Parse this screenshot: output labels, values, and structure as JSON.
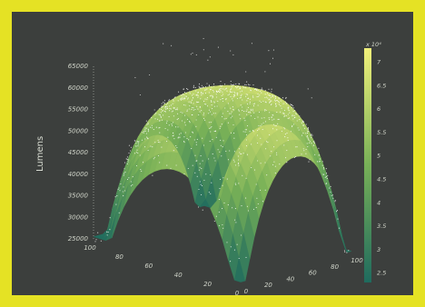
{
  "chart_data": {
    "type": "surface",
    "title": "",
    "zlabel": "Lumens",
    "x_ticks": [
      "100",
      "80",
      "60",
      "40",
      "20",
      "0"
    ],
    "y_ticks": [
      "0",
      "20",
      "40",
      "60",
      "80",
      "100"
    ],
    "z_ticks": [
      "25000",
      "30000",
      "35000",
      "40000",
      "45000",
      "50000",
      "55000",
      "60000",
      "65000"
    ],
    "x_range": [
      0,
      100
    ],
    "y_range": [
      0,
      100
    ],
    "z_range": [
      25000,
      65000
    ],
    "colorbar": {
      "ticks": [
        "2.5",
        "3",
        "3.5",
        "4",
        "4.5",
        "5",
        "5.5",
        "6",
        "6.5",
        "7"
      ],
      "top_label": "x 10⁴",
      "range": [
        2.3,
        7.3
      ]
    },
    "colors": {
      "background": "#3c3f3d",
      "frame": "#e5e224",
      "low": "#1f6b5e",
      "mid": "#77b057",
      "high": "#f1f07a",
      "points": "#ffffff"
    },
    "surface": {
      "description_fn": "plateau with four valleys toward corners; values ~ 26000 to 60000",
      "samples": [
        {
          "x": 50,
          "y": 50,
          "z": 60000
        },
        {
          "x": 0,
          "y": 0,
          "z": 26000
        },
        {
          "x": 100,
          "y": 0,
          "z": 32000
        },
        {
          "x": 0,
          "y": 100,
          "z": 33000
        },
        {
          "x": 100,
          "y": 100,
          "z": 29000
        },
        {
          "x": 50,
          "y": 0,
          "z": 43000
        },
        {
          "x": 0,
          "y": 50,
          "z": 44000
        },
        {
          "x": 100,
          "y": 50,
          "z": 46000
        },
        {
          "x": 50,
          "y": 100,
          "z": 45000
        }
      ]
    }
  }
}
